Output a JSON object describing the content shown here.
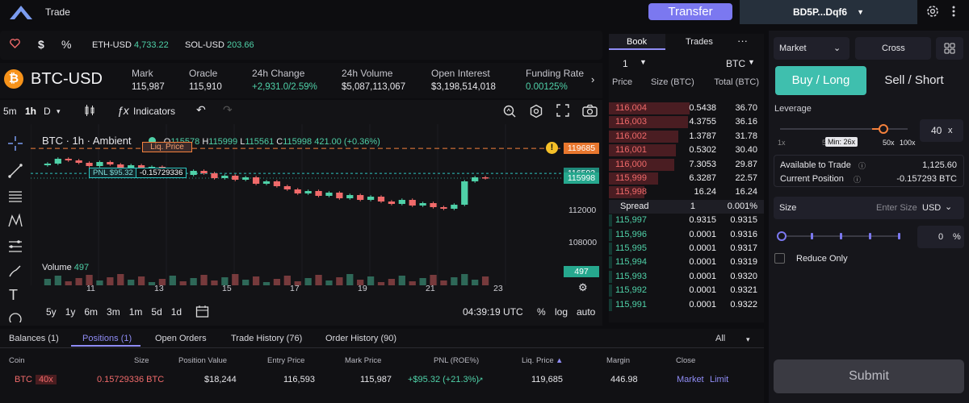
{
  "nav": {
    "trade_label": "Trade",
    "transfer_label": "Transfer",
    "wallet_label": "BD5P...Dqf6"
  },
  "ticker": [
    {
      "symbol": "ETH-USD",
      "price": "4,733.22"
    },
    {
      "symbol": "SOL-USD",
      "price": "203.66"
    }
  ],
  "market": {
    "pair": "BTC-USD",
    "stats": [
      {
        "label": "Mark",
        "value": "115,987",
        "color": "#e6e6ea"
      },
      {
        "label": "Oracle",
        "value": "115,910",
        "color": "#e6e6ea"
      },
      {
        "label": "24h Change",
        "value": "+2,931.0/2.59%",
        "color": "#4fd1a8"
      },
      {
        "label": "24h Volume",
        "value": "$5,087,113,067",
        "color": "#e6e6ea"
      },
      {
        "label": "Open Interest",
        "value": "$3,198,514,018",
        "color": "#e6e6ea"
      },
      {
        "label": "Funding Rate",
        "value": "0.00125%",
        "color": "#4fd1a8"
      }
    ]
  },
  "chart": {
    "intervals": [
      "5m",
      "1h",
      "D"
    ],
    "indicators_label": "Indicators",
    "legend_title": "BTC · 1h · Ambient",
    "ohlc": {
      "o_label": "O",
      "o": "115578",
      "h_label": "H",
      "h": "115999",
      "l_label": "L",
      "l": "115561",
      "c_label": "C",
      "c": "115998",
      "chg": "421.00 (+0.36%)"
    },
    "liq_label": "Liq. Price",
    "pnl_label": "PNL $95.32",
    "pnl_size": "-0.15729336",
    "volume_label": "Volume",
    "volume_value": "497",
    "price_tags": {
      "liq": "119685",
      "entry": "116593",
      "last": "115998",
      "volume": "497"
    },
    "price_ticks": [
      "112000",
      "108000"
    ],
    "date_ticks": [
      "11",
      "13",
      "15",
      "17",
      "19",
      "21",
      "23"
    ],
    "ranges": [
      "5y",
      "1y",
      "6m",
      "3m",
      "1m",
      "5d",
      "1d"
    ],
    "clock": "04:39:19 UTC",
    "scale_opts": [
      "%",
      "log",
      "auto"
    ],
    "colors": {
      "up": "#4fd1a8",
      "down": "#f06a6a",
      "liq": "#f5813c",
      "entry": "#2ec4c0"
    }
  },
  "chart_data": {
    "type": "candlestick",
    "title": "BTC · 1h · Ambient",
    "xlabel": "",
    "ylabel": "",
    "x_ticks": [
      "11",
      "13",
      "15",
      "17",
      "19",
      "21",
      "23"
    ],
    "y_ticks": [
      112000,
      108000
    ],
    "ylim": [
      104500,
      121500
    ],
    "close_path": [
      117600,
      117800,
      118400,
      118200,
      117900,
      117500,
      118000,
      117700,
      117200,
      117600,
      116900,
      117400,
      116800,
      117100,
      116400,
      116900,
      116600,
      116000,
      116300,
      115800,
      116100,
      115300,
      115600,
      115000,
      114600,
      114100,
      114400,
      113800,
      114200,
      113500,
      113900,
      113300,
      113700,
      113100,
      112800,
      113300,
      112600,
      112900,
      112400,
      112200,
      112700,
      115600,
      116100,
      115998
    ],
    "last_price": 115998,
    "liq_price": 119685,
    "entry_price": 116593
  },
  "positions": {
    "tabs": [
      "Balances (1)",
      "Positions (1)",
      "Open Orders",
      "Trade History (76)",
      "Order History (90)"
    ],
    "filter": "All",
    "columns": [
      "Coin",
      "Size",
      "Position Value",
      "Entry Price",
      "Mark Price",
      "PNL (ROE%)",
      "Liq. Price",
      "Margin",
      "Close"
    ],
    "row": {
      "coin": "BTC",
      "leverage": "40x",
      "size": "0.15729336 BTC",
      "value": "$18,244",
      "entry": "116,593",
      "mark": "115,987",
      "pnl": "+$95.32 (+21.3%)",
      "liq": "119,685",
      "margin": "446.98",
      "close_market": "Market",
      "close_limit": "Limit"
    }
  },
  "book": {
    "tabs": [
      "Book",
      "Trades"
    ],
    "more": "···",
    "tick_size": "1",
    "unit": "BTC",
    "headers": [
      "Price",
      "Size (BTC)",
      "Total (BTC)"
    ],
    "asks": [
      {
        "price": "116,004",
        "size": "0.5438",
        "total": "36.70",
        "fill": 0.52
      },
      {
        "price": "116,003",
        "size": "4.3755",
        "total": "36.16",
        "fill": 0.51
      },
      {
        "price": "116,002",
        "size": "1.3787",
        "total": "31.78",
        "fill": 0.45
      },
      {
        "price": "116,001",
        "size": "0.5302",
        "total": "30.40",
        "fill": 0.43
      },
      {
        "price": "116,000",
        "size": "7.3053",
        "total": "29.87",
        "fill": 0.42
      },
      {
        "price": "115,999",
        "size": "6.3287",
        "total": "22.57",
        "fill": 0.32
      },
      {
        "price": "115,998",
        "size": "16.24",
        "total": "16.24",
        "fill": 0.23
      }
    ],
    "spread": {
      "label": "Spread",
      "value": "1",
      "pct": "0.001%"
    },
    "bids": [
      {
        "price": "115,997",
        "size": "0.9315",
        "total": "0.9315",
        "fill": 0.02
      },
      {
        "price": "115,996",
        "size": "0.0001",
        "total": "0.9316",
        "fill": 0.02
      },
      {
        "price": "115,995",
        "size": "0.0001",
        "total": "0.9317",
        "fill": 0.02
      },
      {
        "price": "115,994",
        "size": "0.0001",
        "total": "0.9319",
        "fill": 0.02
      },
      {
        "price": "115,993",
        "size": "0.0001",
        "total": "0.9320",
        "fill": 0.02
      },
      {
        "price": "115,992",
        "size": "0.0001",
        "total": "0.9321",
        "fill": 0.02
      },
      {
        "price": "115,991",
        "size": "0.0001",
        "total": "0.9322",
        "fill": 0.02
      }
    ]
  },
  "trade": {
    "order_type": "Market",
    "margin_mode": "Cross",
    "buy_label": "Buy / Long",
    "sell_label": "Sell / Short",
    "leverage_label": "Leverage",
    "leverage_value": "40",
    "leverage_unit": "x",
    "leverage_min_tip": "Min: 26x",
    "leverage_ticks": [
      "1x",
      "5",
      "50x",
      "100x"
    ],
    "available_label": "Available to Trade",
    "available_value": "1,125.60",
    "current_label": "Current Position",
    "current_value": "-0.157293 BTC",
    "size_label": "Size",
    "size_placeholder": "Enter Size",
    "size_unit": "USD",
    "size_pct": "0",
    "size_pct_unit": "%",
    "reduce_only_label": "Reduce Only",
    "submit_label": "Submit"
  }
}
